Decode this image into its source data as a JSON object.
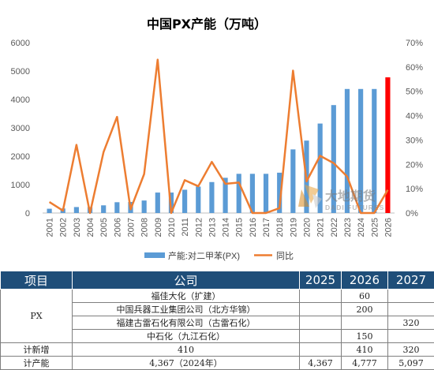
{
  "chart_data": {
    "type": "bar+line",
    "title": "中国PX产能（万吨）",
    "categories": [
      "2001",
      "2002",
      "2003",
      "2004",
      "2005",
      "2006",
      "2007",
      "2008",
      "2009",
      "2010",
      "2011",
      "2012",
      "2013",
      "2014",
      "2015",
      "2016",
      "2017",
      "2018",
      "2019",
      "2020",
      "2021",
      "2022",
      "2023",
      "2024",
      "2025",
      "2026"
    ],
    "series": [
      {
        "name": "产能:对二甲苯(PX)",
        "type": "bar",
        "axis": "left",
        "color": "#5b9bd5",
        "values": [
          150,
          160,
          210,
          210,
          270,
          380,
          390,
          440,
          720,
          720,
          820,
          930,
          1090,
          1240,
          1380,
          1380,
          1380,
          1420,
          2240,
          2550,
          3150,
          3800,
          4367,
          4367,
          4367,
          4777
        ],
        "highlight_index": 25,
        "highlight_color": "#ff0000"
      },
      {
        "name": "同比",
        "type": "line",
        "axis": "right",
        "color": "#ed7d31",
        "values": [
          4.5,
          1.0,
          28.0,
          0.0,
          25.0,
          39.5,
          1.5,
          16.0,
          63.0,
          0.0,
          13.5,
          11.0,
          21.0,
          12.0,
          12.5,
          0.0,
          0.0,
          2.0,
          58.5,
          13.0,
          23.5,
          20.5,
          15.0,
          0.0,
          0.0,
          9.5
        ]
      }
    ],
    "y_left": {
      "min": 0,
      "max": 6000,
      "ticks": [
        "0",
        "1000",
        "2000",
        "3000",
        "4000",
        "5000",
        "6000"
      ]
    },
    "y_right": {
      "min": 0,
      "max": 70,
      "ticks": [
        "0%",
        "10%",
        "20%",
        "30%",
        "40%",
        "50%",
        "60%",
        "70%"
      ]
    },
    "legend_position": "bottom",
    "grid": false
  },
  "watermark": {
    "main_text": "大地期货",
    "sub_text": "DADI FUTURES"
  },
  "table": {
    "headers": [
      "项目",
      "公司",
      "2025",
      "2026",
      "2027"
    ],
    "group_label": "PX",
    "rows": [
      {
        "company": "福佳大化（扩建）",
        "y2025": "",
        "y2026": "60",
        "y2027": ""
      },
      {
        "company": "中国兵器工业集团公司（北方华锦）",
        "y2025": "",
        "y2026": "200",
        "y2027": ""
      },
      {
        "company": "福建古雷石化有限公司（古雷石化）",
        "y2025": "",
        "y2026": "",
        "y2027": "320"
      },
      {
        "company": "中石化（九江石化）",
        "y2025": "",
        "y2026": "150",
        "y2027": ""
      }
    ],
    "new_total": {
      "label": "计新增",
      "company": "410",
      "y2025": "",
      "y2026": "410",
      "y2027": "320"
    },
    "capacity_total": {
      "label": "计产能",
      "company": "4,367（2024年）",
      "y2025": "4,367",
      "y2026": "4,777",
      "y2027": "5,097"
    }
  }
}
